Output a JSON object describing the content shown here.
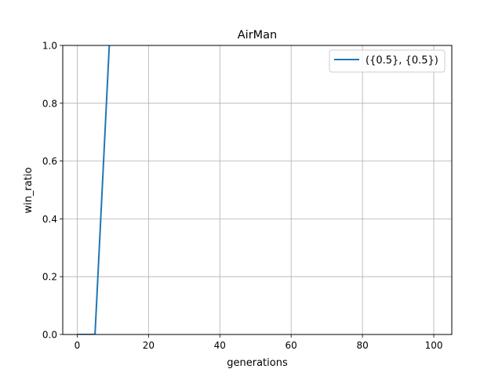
{
  "chart_data": {
    "type": "line",
    "title": "AirMan",
    "xlabel": "generations",
    "ylabel": "win_ratio",
    "xlim": [
      -4.05,
      105.05
    ],
    "ylim": [
      0.0,
      1.0
    ],
    "xticks": [
      0,
      20,
      40,
      60,
      80,
      100
    ],
    "yticks": [
      0.0,
      0.2,
      0.4,
      0.6,
      0.8,
      1.0
    ],
    "xtick_labels": [
      "0",
      "20",
      "40",
      "60",
      "80",
      "100"
    ],
    "ytick_labels": [
      "0.0",
      "0.2",
      "0.4",
      "0.6",
      "0.8",
      "1.0"
    ],
    "grid": true,
    "legend_position": "top-right",
    "series": [
      {
        "name": "({0.5}, {0.5})",
        "color": "#1f77b4",
        "x": [
          0,
          1,
          2,
          3,
          4,
          5,
          6,
          7,
          8,
          9
        ],
        "y": [
          0.0,
          0.0,
          0.0,
          0.0,
          0.0,
          0.0,
          0.25,
          0.5,
          0.75,
          1.0
        ]
      }
    ]
  }
}
